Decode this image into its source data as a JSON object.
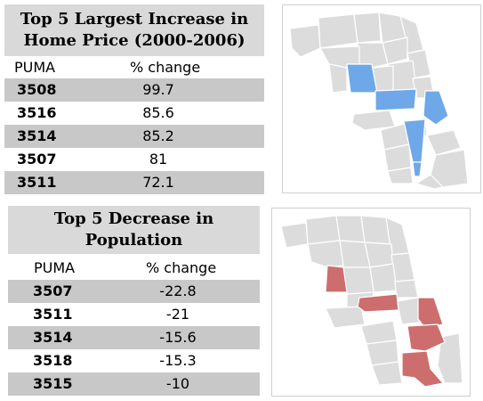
{
  "top_panel": {
    "title_line1": "Top 5 Largest Increase in",
    "title_line2": "Home Price (2000-2006)",
    "col_puma": "PUMA",
    "col_change": "% change",
    "rows": [
      {
        "puma": "3508",
        "change": "99.7"
      },
      {
        "puma": "3516",
        "change": "85.6"
      },
      {
        "puma": "3514",
        "change": "85.2"
      },
      {
        "puma": "3507",
        "change": "81"
      },
      {
        "puma": "3511",
        "change": "72.1"
      }
    ],
    "highlight_color": "#6ea8e8"
  },
  "bottom_panel": {
    "title_line1": "Top 5 Decrease in",
    "title_line2": "Population",
    "col_puma": "PUMA",
    "col_change": "% change",
    "rows": [
      {
        "puma": "3507",
        "change": "-22.8"
      },
      {
        "puma": "3511",
        "change": "-21"
      },
      {
        "puma": "3514",
        "change": "-15.6"
      },
      {
        "puma": "3518",
        "change": "-15.3"
      },
      {
        "puma": "3515",
        "change": "-10"
      }
    ],
    "highlight_color": "#cd6d6d"
  },
  "colors": {
    "table_shade": "#c8c8c8",
    "title_bg": "#d9d9d9",
    "map_base": "#dcdcdc"
  }
}
